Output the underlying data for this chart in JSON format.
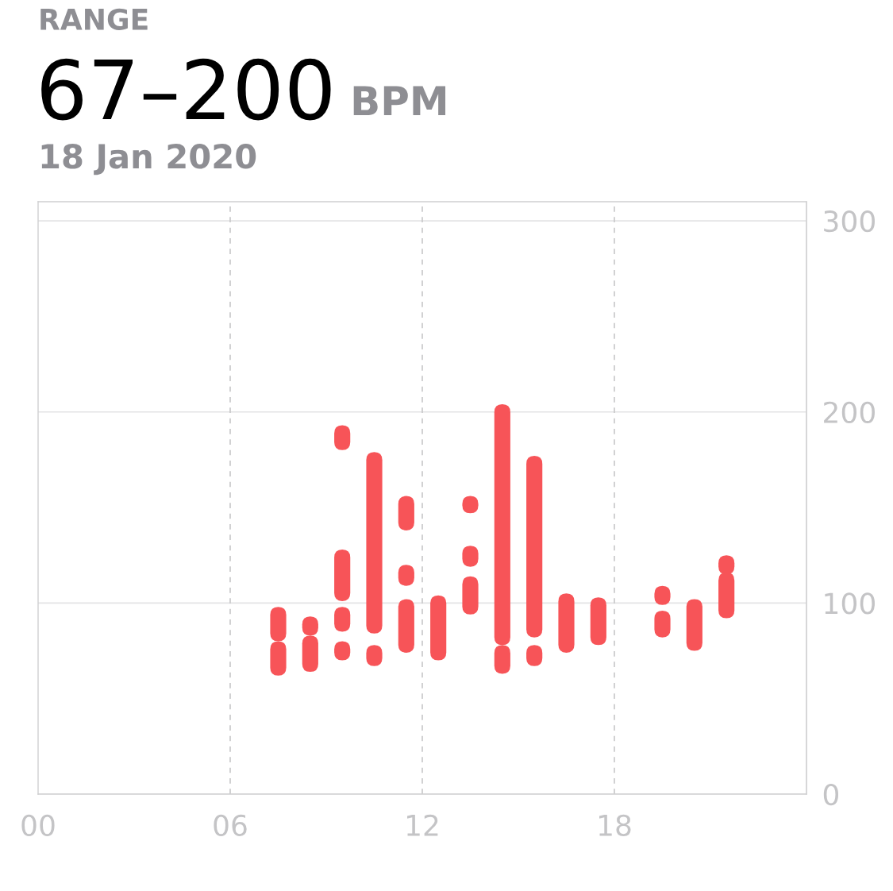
{
  "chart_data": {
    "type": "bar",
    "title": "RANGE",
    "subtitle": "18 Jan 2020",
    "annotations": [
      "67–200",
      "BPM"
    ],
    "x": [
      7.5,
      8.5,
      9.5,
      10.5,
      11.5,
      12.5,
      13.5,
      14.5,
      15.5,
      16.5,
      17.5,
      19.5,
      20.5,
      21.5
    ],
    "series": [
      {
        "color": "#f75458",
        "base": [
          80,
          83,
          180,
          84,
          138,
          70,
          147,
          78,
          82,
          74,
          78,
          99,
          75,
          115
        ],
        "values": [
          18,
          10,
          13,
          95,
          18,
          34,
          9,
          126,
          95,
          31,
          25,
          10,
          27,
          10
        ]
      },
      {
        "color": "#f75458",
        "base": [
          62,
          64,
          101,
          67,
          109,
          null,
          119,
          63,
          67,
          null,
          null,
          82,
          null,
          92
        ],
        "values": [
          18,
          19,
          27,
          11,
          11,
          null,
          11,
          15,
          11,
          null,
          null,
          14,
          null,
          24
        ]
      },
      {
        "color": "#f75458",
        "base": [
          null,
          null,
          85,
          null,
          74,
          null,
          94,
          null,
          null,
          null,
          null,
          null,
          null,
          null
        ],
        "values": [
          null,
          null,
          13,
          null,
          28,
          null,
          20,
          null,
          null,
          null,
          null,
          null,
          null,
          null
        ]
      },
      {
        "color": "#f75458",
        "base": [
          null,
          null,
          70,
          null,
          null,
          null,
          null,
          null,
          null,
          null,
          null,
          null,
          null,
          null
        ],
        "values": [
          null,
          null,
          10,
          null,
          null,
          null,
          null,
          null,
          null,
          null,
          null,
          null,
          null,
          null
        ]
      }
    ],
    "xlim": [
      0,
      24
    ],
    "xticks": [
      {
        "value": 0,
        "label": "00"
      },
      {
        "value": 6,
        "label": "06"
      },
      {
        "value": 12,
        "label": "12"
      },
      {
        "value": 18,
        "label": "18"
      }
    ],
    "ylim": [
      0,
      310
    ],
    "yticks": [
      0,
      100,
      200,
      300
    ],
    "grid": true
  }
}
